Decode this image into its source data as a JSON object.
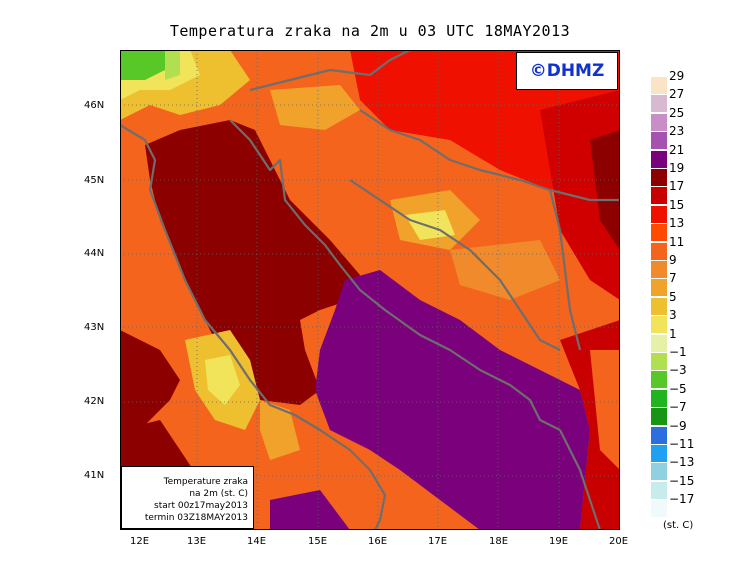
{
  "title": "Temperatura zraka na 2m u 03 UTC 18MAY2013",
  "logo_text": "©DHMZ",
  "infobox": [
    "Temperature zraka",
    "na 2m (st. C)",
    "start 00z17may2013",
    "termin 03Z18MAY2013"
  ],
  "lat_labels": [
    "46N",
    "45N",
    "44N",
    "43N",
    "42N",
    "41N"
  ],
  "lon_labels": [
    "12E",
    "13E",
    "14E",
    "15E",
    "16E",
    "17E",
    "18E",
    "19E",
    "20E"
  ],
  "legend": {
    "labels": [
      "29",
      "27",
      "25",
      "23",
      "21",
      "19",
      "17",
      "15",
      "13",
      "11",
      "9",
      "7",
      "5",
      "3",
      "1",
      "−1",
      "−3",
      "−5",
      "−7",
      "−9",
      "−11",
      "−13",
      "−15",
      "−17"
    ],
    "colors": [
      "#fbe4c6",
      "#d7b9d2",
      "#c98ec6",
      "#a752b1",
      "#7a007c",
      "#8c0000",
      "#c80000",
      "#f01000",
      "#ff4a00",
      "#f4641c",
      "#f08a2a",
      "#f0a22a",
      "#eec030",
      "#f2e45a",
      "#e6f0a8",
      "#b0e050",
      "#58c828",
      "#20b420",
      "#169612",
      "#2a6ee0",
      "#20a0f0",
      "#90d0e0",
      "#c8ecec",
      "#f0fafa"
    ],
    "unit": "(st. C)"
  }
}
